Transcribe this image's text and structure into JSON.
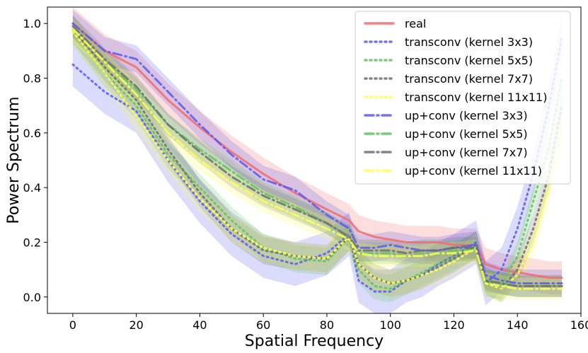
{
  "chart_data": {
    "type": "line",
    "title": "",
    "xlabel": "Spatial Frequency",
    "ylabel": "Power Spectrum",
    "xlim": [
      -8,
      160
    ],
    "ylim": [
      -0.06,
      1.06
    ],
    "xticks": [
      0,
      20,
      40,
      60,
      80,
      100,
      120,
      140,
      160
    ],
    "yticks": [
      0.0,
      0.2,
      0.4,
      0.6,
      0.8,
      1.0
    ],
    "xtick_labels": [
      "0",
      "20",
      "40",
      "60",
      "80",
      "100",
      "120",
      "140",
      "160"
    ],
    "ytick_labels": [
      "0.0",
      "0.2",
      "0.4",
      "0.6",
      "0.8",
      "1.0"
    ],
    "legend_position": "top-right",
    "x": [
      0,
      10,
      20,
      30,
      40,
      50,
      60,
      70,
      80,
      87,
      90,
      95,
      100,
      105,
      110,
      115,
      120,
      127,
      130,
      135,
      140,
      145,
      150,
      154
    ],
    "series": [
      {
        "name": "real",
        "color": "#f46b6b",
        "style": "solid",
        "values": [
          1.0,
          0.9,
          0.84,
          0.72,
          0.62,
          0.53,
          0.45,
          0.38,
          0.32,
          0.28,
          0.24,
          0.22,
          0.21,
          0.2,
          0.2,
          0.2,
          0.19,
          0.19,
          0.12,
          0.1,
          0.09,
          0.08,
          0.07,
          0.07
        ],
        "band": 0.06
      },
      {
        "name": "transconv (kernel 3x3)",
        "color": "#5b5bf2",
        "style": "dotted",
        "values": [
          0.85,
          0.75,
          0.68,
          0.5,
          0.35,
          0.23,
          0.15,
          0.12,
          0.16,
          0.23,
          0.06,
          0.02,
          0.02,
          0.06,
          0.08,
          0.12,
          0.15,
          0.2,
          0.05,
          0.1,
          0.25,
          0.45,
          0.7,
          0.95
        ],
        "band": 0.08
      },
      {
        "name": "transconv (kernel 5x5)",
        "color": "#5fc45f",
        "style": "dotted",
        "values": [
          0.97,
          0.82,
          0.7,
          0.52,
          0.4,
          0.28,
          0.18,
          0.14,
          0.13,
          0.22,
          0.1,
          0.04,
          0.03,
          0.06,
          0.09,
          0.12,
          0.15,
          0.19,
          0.05,
          0.04,
          0.15,
          0.35,
          0.55,
          0.8
        ],
        "band": 0.05
      },
      {
        "name": "transconv (kernel 7x7)",
        "color": "#6e6e6e",
        "style": "dotted",
        "values": [
          0.98,
          0.84,
          0.72,
          0.54,
          0.38,
          0.25,
          0.17,
          0.15,
          0.14,
          0.22,
          0.12,
          0.07,
          0.05,
          0.06,
          0.08,
          0.11,
          0.14,
          0.19,
          0.06,
          0.03,
          0.1,
          0.25,
          0.45,
          0.7
        ],
        "band": 0.05
      },
      {
        "name": "transconv (kernel 11x11)",
        "color": "#ffff55",
        "style": "dotted",
        "values": [
          0.97,
          0.82,
          0.66,
          0.5,
          0.36,
          0.25,
          0.18,
          0.15,
          0.14,
          0.22,
          0.12,
          0.07,
          0.05,
          0.06,
          0.08,
          0.1,
          0.13,
          0.18,
          0.05,
          0.03,
          0.08,
          0.2,
          0.4,
          0.62
        ],
        "band": 0.05
      },
      {
        "name": "up+conv (kernel 3x3)",
        "color": "#5b5bf2",
        "style": "dashdot",
        "values": [
          1.0,
          0.9,
          0.87,
          0.75,
          0.63,
          0.52,
          0.43,
          0.39,
          0.3,
          0.25,
          0.18,
          0.18,
          0.19,
          0.18,
          0.17,
          0.17,
          0.18,
          0.19,
          0.08,
          0.06,
          0.05,
          0.05,
          0.05,
          0.05
        ],
        "band": 0.05
      },
      {
        "name": "up+conv (kernel 5x5)",
        "color": "#5fc45f",
        "style": "dashdot",
        "values": [
          0.98,
          0.86,
          0.76,
          0.63,
          0.54,
          0.46,
          0.38,
          0.33,
          0.27,
          0.22,
          0.16,
          0.16,
          0.16,
          0.15,
          0.16,
          0.16,
          0.17,
          0.17,
          0.06,
          0.05,
          0.04,
          0.04,
          0.04,
          0.04
        ],
        "band": 0.04
      },
      {
        "name": "up+conv (kernel 7x7)",
        "color": "#6e6e6e",
        "style": "dashdot",
        "values": [
          0.99,
          0.87,
          0.77,
          0.63,
          0.53,
          0.44,
          0.37,
          0.32,
          0.27,
          0.22,
          0.17,
          0.17,
          0.17,
          0.16,
          0.17,
          0.17,
          0.18,
          0.18,
          0.06,
          0.05,
          0.04,
          0.04,
          0.04,
          0.04
        ],
        "band": 0.04
      },
      {
        "name": "up+conv (kernel 11x11)",
        "color": "#ffff55",
        "style": "dashdot",
        "values": [
          0.98,
          0.86,
          0.74,
          0.6,
          0.5,
          0.42,
          0.35,
          0.3,
          0.25,
          0.21,
          0.16,
          0.15,
          0.15,
          0.15,
          0.15,
          0.16,
          0.16,
          0.17,
          0.05,
          0.04,
          0.03,
          0.03,
          0.03,
          0.03
        ],
        "band": 0.04
      }
    ]
  }
}
